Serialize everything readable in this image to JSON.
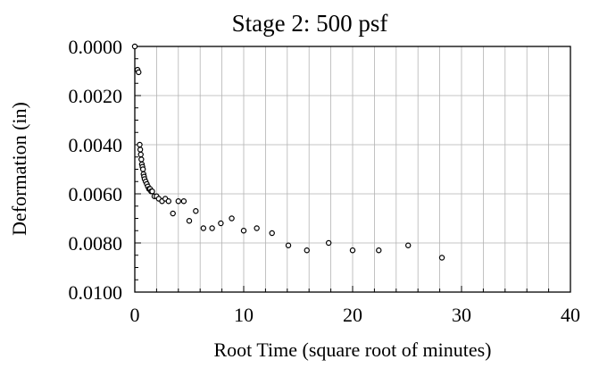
{
  "chart_data": {
    "type": "scatter",
    "title": "Stage 2: 500 psf",
    "xlabel": "Root Time (square root of minutes)",
    "ylabel": "Deformation (in)",
    "xlim": [
      0,
      40
    ],
    "ylim": [
      0.0,
      0.01
    ],
    "y_inverted": true,
    "grid": true,
    "x_ticks": [
      0,
      10,
      20,
      30,
      40
    ],
    "x_tick_labels": [
      "0",
      "10",
      "20",
      "30",
      "40"
    ],
    "y_ticks": [
      0.0,
      0.002,
      0.004,
      0.006,
      0.008,
      0.01
    ],
    "y_tick_labels": [
      "0.0000",
      "0.0020",
      "0.0040",
      "0.0060",
      "0.0080",
      "0.0100"
    ],
    "marker": "open-circle",
    "series": [
      {
        "x": [
          0.0,
          0.25,
          0.35,
          0.45,
          0.5,
          0.55,
          0.6,
          0.65,
          0.7,
          0.75,
          0.8,
          0.85,
          0.9,
          1.0,
          1.1,
          1.2,
          1.3,
          1.4,
          1.5,
          1.6,
          1.8,
          2.0,
          2.2,
          2.5,
          2.8,
          3.1,
          3.5,
          4.0,
          4.5,
          5.0,
          5.6,
          6.3,
          7.1,
          7.9,
          8.9,
          10.0,
          11.2,
          12.6,
          14.1,
          15.8,
          17.8,
          20.0,
          22.4,
          25.1,
          28.2
        ],
        "y": [
          0.0,
          0.00095,
          0.00105,
          0.004,
          0.0042,
          0.0044,
          0.0046,
          0.0048,
          0.0049,
          0.005,
          0.0052,
          0.0053,
          0.0054,
          0.0055,
          0.0056,
          0.0057,
          0.0058,
          0.0058,
          0.0059,
          0.0059,
          0.0061,
          0.0061,
          0.0062,
          0.0063,
          0.0062,
          0.0063,
          0.0068,
          0.0063,
          0.0063,
          0.0071,
          0.0067,
          0.0074,
          0.0074,
          0.0072,
          0.007,
          0.0075,
          0.0074,
          0.0076,
          0.0081,
          0.0083,
          0.008,
          0.0083,
          0.0083,
          0.0081,
          0.0086
        ]
      }
    ]
  }
}
